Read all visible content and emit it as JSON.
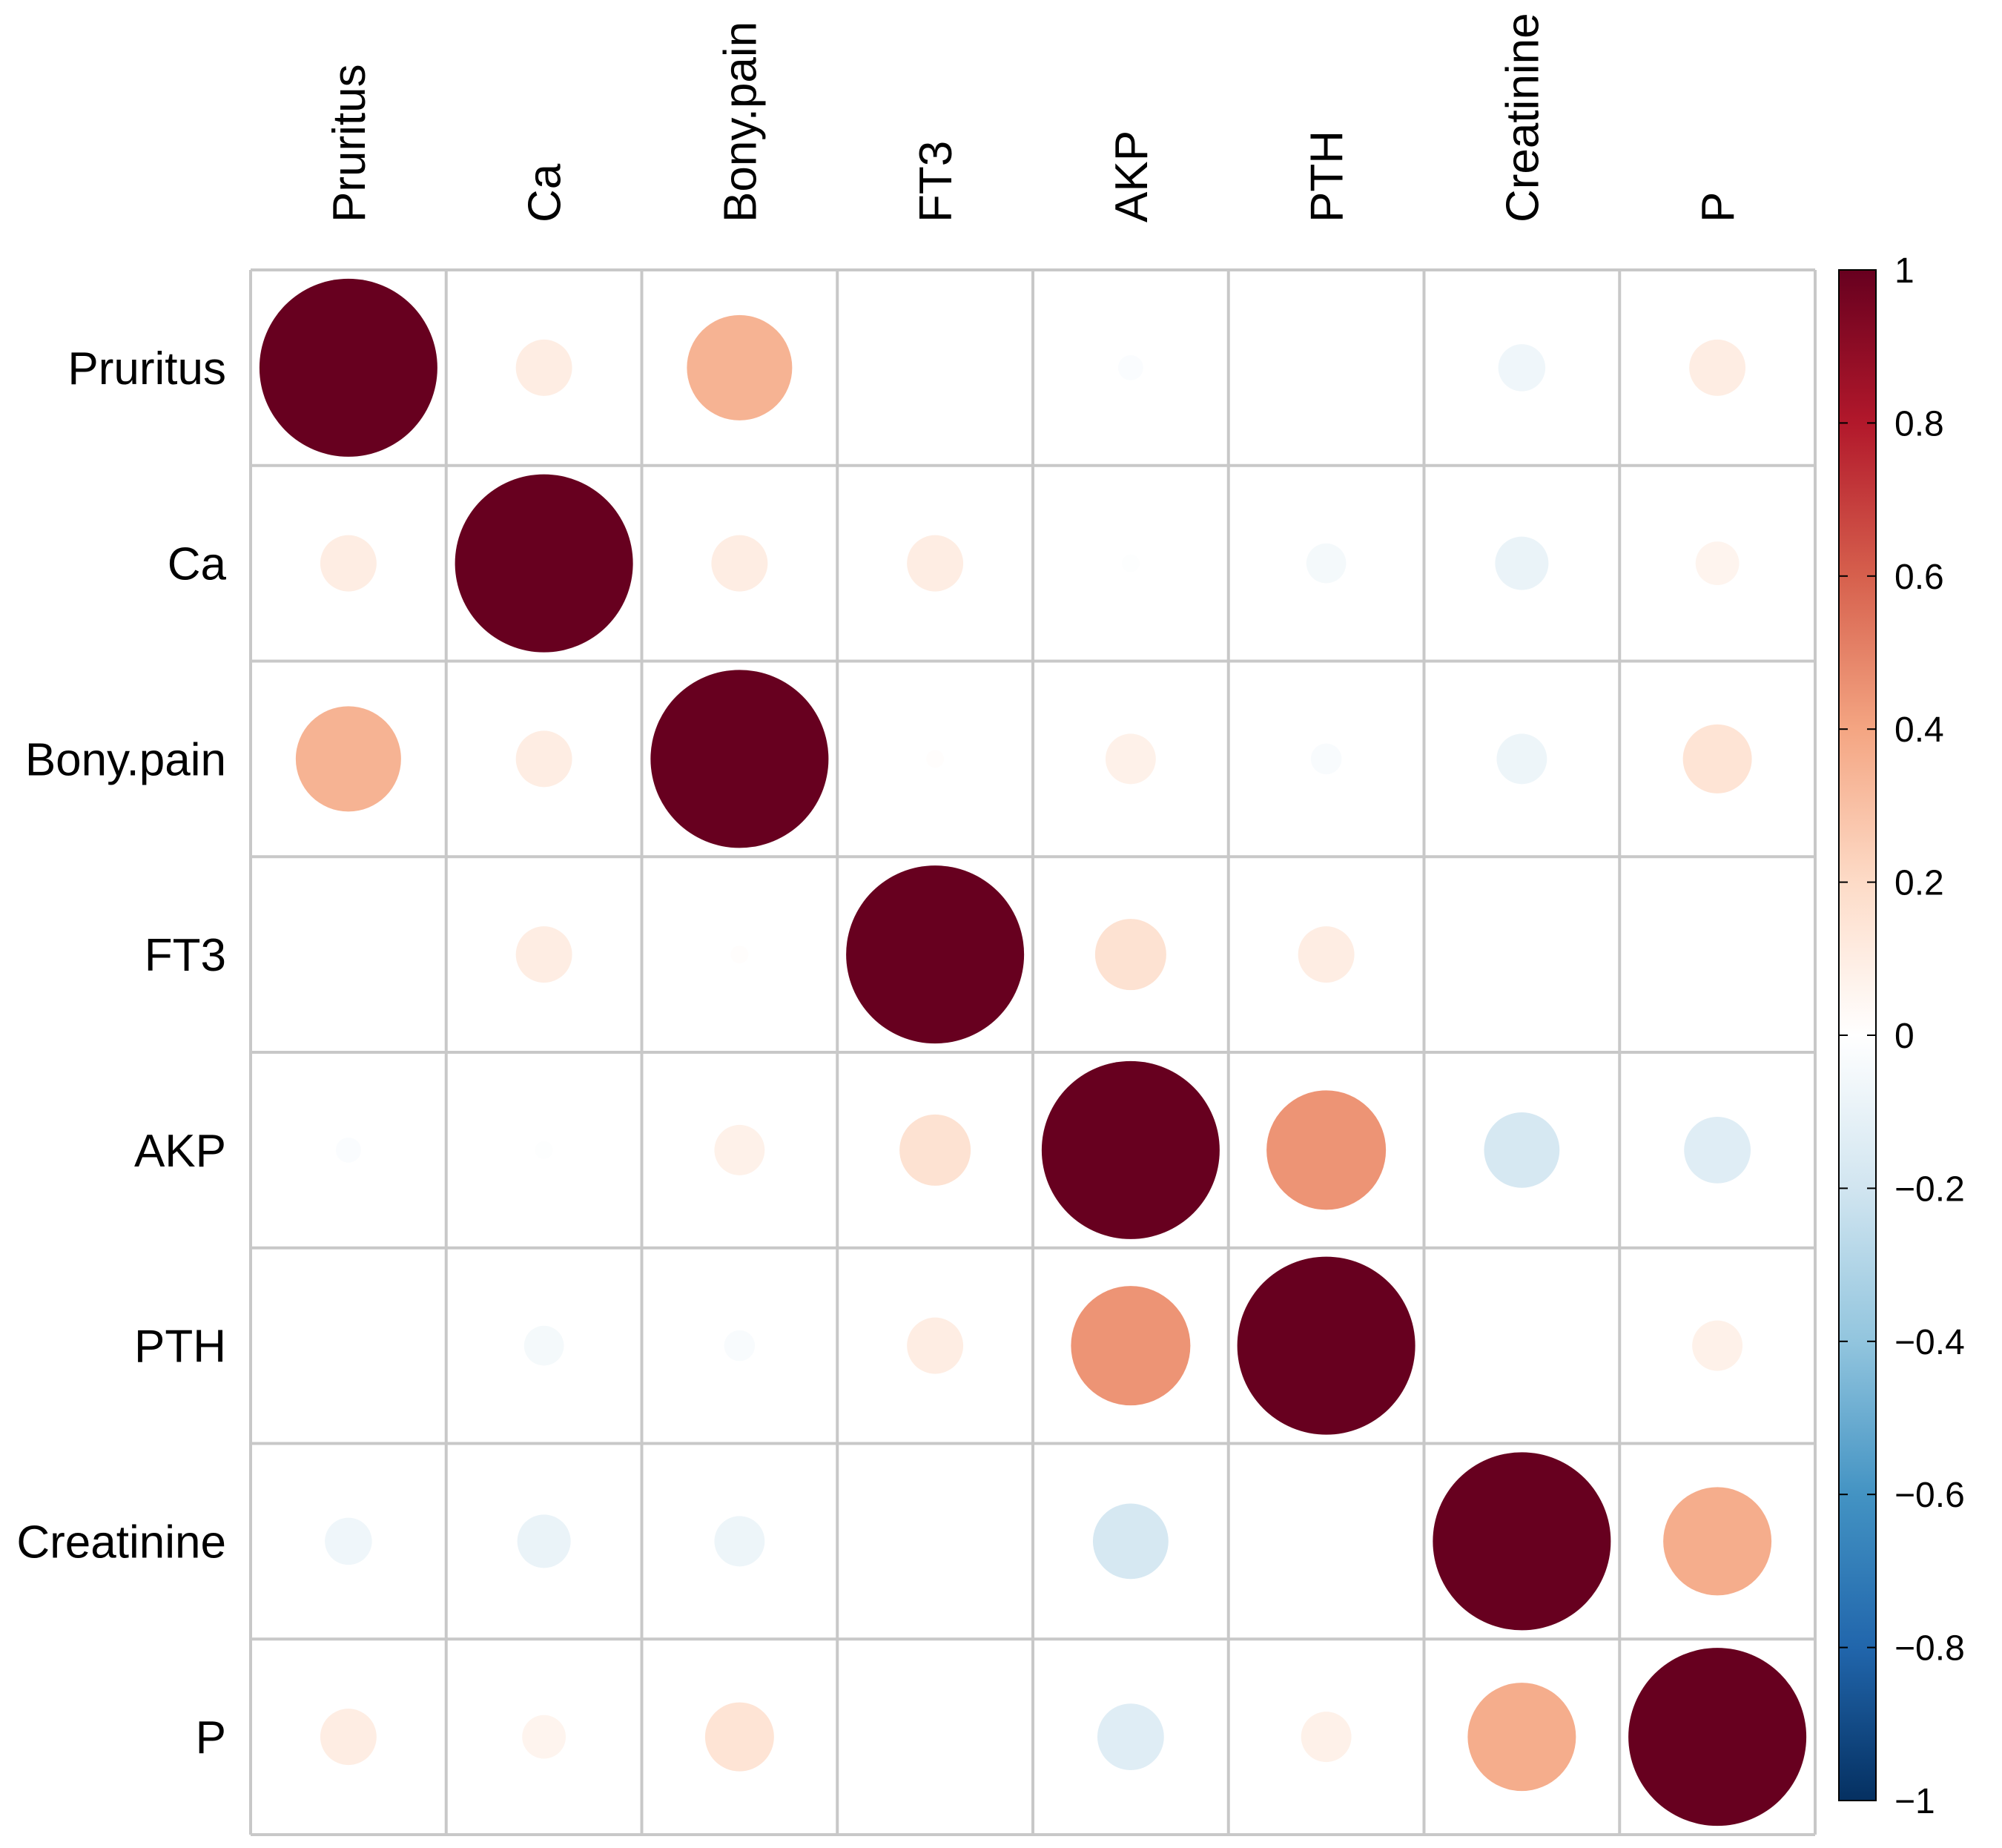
{
  "chart_data": {
    "type": "heatmap",
    "style": "correlation-circle-matrix",
    "variables": [
      "Pruritus",
      "Ca",
      "Bony.pain",
      "FT3",
      "AKP",
      "PTH",
      "Creatinine",
      "P"
    ],
    "matrix": [
      [
        1.0,
        0.1,
        0.35,
        0.0,
        -0.02,
        0.0,
        -0.07,
        0.1
      ],
      [
        0.1,
        1.0,
        0.1,
        0.1,
        -0.01,
        -0.05,
        -0.09,
        0.06
      ],
      [
        0.35,
        0.1,
        1.0,
        0.01,
        0.08,
        -0.03,
        -0.08,
        0.15
      ],
      [
        0.0,
        0.1,
        0.01,
        1.0,
        0.16,
        0.1,
        0.0,
        0.0
      ],
      [
        -0.02,
        -0.01,
        0.08,
        0.16,
        1.0,
        0.45,
        -0.18,
        -0.14
      ],
      [
        0.0,
        -0.05,
        -0.03,
        0.1,
        0.45,
        1.0,
        0.0,
        0.08
      ],
      [
        -0.07,
        -0.09,
        -0.08,
        0.0,
        -0.18,
        0.0,
        1.0,
        0.37
      ],
      [
        0.1,
        0.06,
        0.15,
        0.0,
        -0.14,
        0.08,
        0.37,
        1.0
      ]
    ],
    "colorbar": {
      "range": [
        -1,
        1
      ],
      "ticks": [
        1,
        0.8,
        0.6,
        0.4,
        0.2,
        0,
        -0.2,
        -0.4,
        -0.6,
        -0.8,
        -1
      ],
      "tick_labels": [
        "1",
        "0.8",
        "0.6",
        "0.4",
        "0.2",
        "0",
        "−0.2",
        "−0.4",
        "−0.6",
        "−0.8",
        "−1"
      ],
      "colors": [
        "#67001F",
        "#B2182B",
        "#D6604D",
        "#F4A582",
        "#FDDBC7",
        "#FFFFFF",
        "#D1E5F0",
        "#92C5DE",
        "#4393C3",
        "#2166AC",
        "#053061"
      ]
    },
    "title": "",
    "xlabel": "",
    "ylabel": ""
  }
}
